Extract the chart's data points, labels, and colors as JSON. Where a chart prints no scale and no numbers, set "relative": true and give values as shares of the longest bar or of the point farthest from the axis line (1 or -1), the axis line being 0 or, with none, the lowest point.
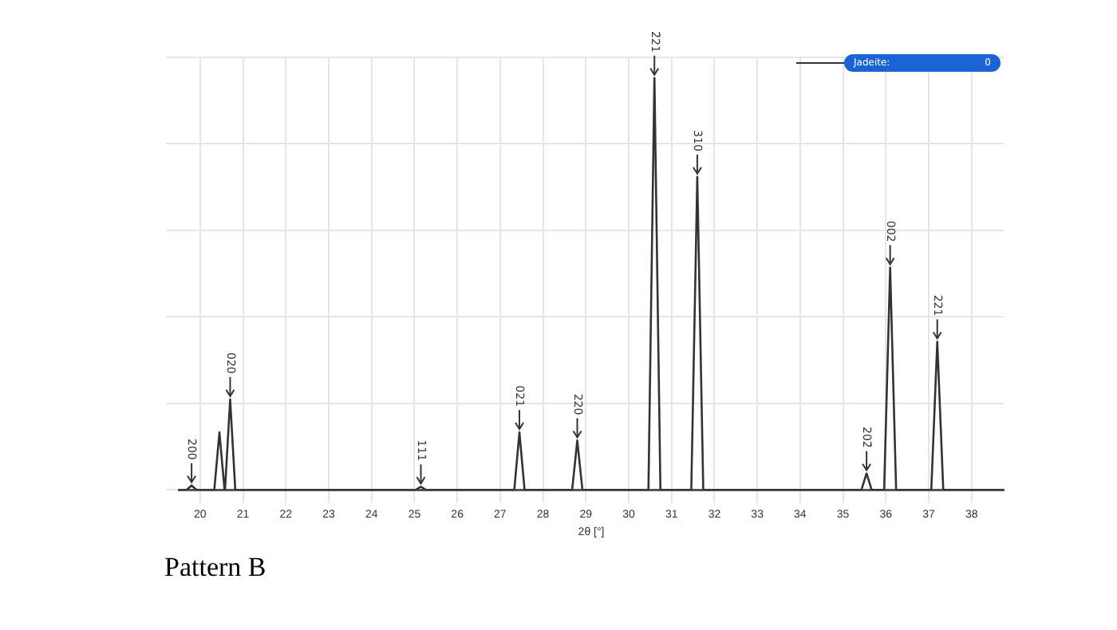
{
  "chart_data": {
    "type": "line",
    "title": "Pattern B",
    "xlabel": "2θ [°]",
    "relative": true,
    "xlim": [
      19.5,
      38.75
    ],
    "xticks": [
      20,
      21,
      22,
      23,
      24,
      25,
      26,
      27,
      28,
      29,
      30,
      31,
      32,
      33,
      34,
      35,
      36,
      37,
      38
    ],
    "grid": true,
    "legend": "top right",
    "marker": "none",
    "line_style": "solid",
    "series": [
      {
        "name": "Jadeite:",
        "color": "#333333",
        "x": [
          19.5,
          19.68,
          19.8,
          19.92,
          20.33,
          20.45,
          20.57,
          20.58,
          20.7,
          20.82,
          25.03,
          25.15,
          25.27,
          27.33,
          27.45,
          27.57,
          28.68,
          28.8,
          28.92,
          30.46,
          30.6,
          30.74,
          31.46,
          31.6,
          31.74,
          35.43,
          35.55,
          35.67,
          35.96,
          36.1,
          36.24,
          37.06,
          37.2,
          37.34,
          38.75
        ],
        "values": [
          0,
          0,
          0.011,
          0,
          0,
          0.14,
          0,
          0,
          0.22,
          0,
          0,
          0.008,
          0,
          0,
          0.14,
          0,
          0,
          0.12,
          0,
          0,
          1,
          0,
          0,
          0.76,
          0,
          0,
          0.04,
          0,
          0,
          0.54,
          0,
          0,
          0.36,
          0,
          0
        ]
      }
    ],
    "annotations": [
      {
        "text": "200",
        "x": 19.8,
        "y": 0.011
      },
      {
        "text": "020",
        "x": 20.7,
        "y": 0.22
      },
      {
        "text": "111",
        "x": 25.15,
        "y": 0.008
      },
      {
        "text": "021",
        "x": 27.45,
        "y": 0.14
      },
      {
        "text": "220",
        "x": 28.8,
        "y": 0.12
      },
      {
        "text": "2̄21",
        "x": 30.6,
        "y": 1
      },
      {
        "text": "310",
        "x": 31.6,
        "y": 0.76
      },
      {
        "text": "202̄",
        "x": 35.55,
        "y": 0.04
      },
      {
        "text": "002",
        "x": 36.1,
        "y": 0.54
      },
      {
        "text": "221",
        "x": 37.2,
        "y": 0.36
      },
      "0"
    ]
  }
}
